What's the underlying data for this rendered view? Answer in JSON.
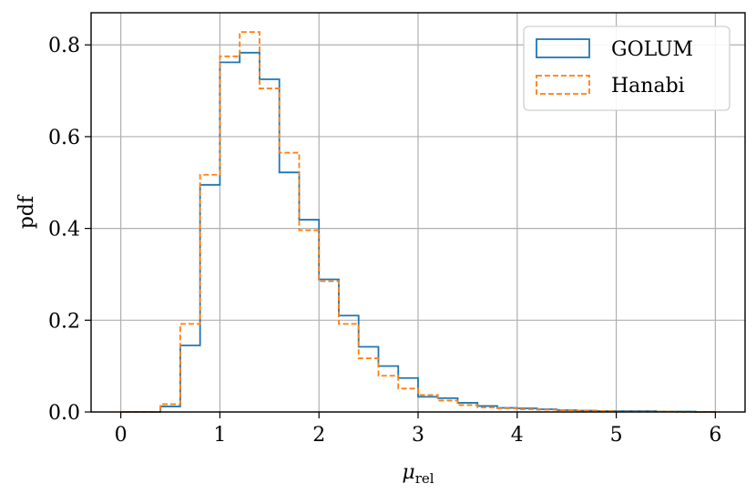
{
  "chart_data": {
    "type": "histogram",
    "title": "",
    "xlabel": "μ_rel",
    "xlabel_parts": {
      "base": "μ",
      "subscript": "rel"
    },
    "ylabel": "pdf",
    "xlim": [
      -0.3,
      6.3
    ],
    "ylim": [
      0,
      0.87
    ],
    "xticks": [
      0,
      1,
      2,
      3,
      4,
      5,
      6
    ],
    "xtick_labels": [
      "0",
      "1",
      "2",
      "3",
      "4",
      "5",
      "6"
    ],
    "yticks": [
      0,
      0.2,
      0.4,
      0.6,
      0.8
    ],
    "ytick_labels": [
      "0.0",
      "0.2",
      "0.4",
      "0.6",
      "0.8"
    ],
    "grid": true,
    "legend_position": "top-right",
    "bin_edges": [
      0.0,
      0.2,
      0.4,
      0.6,
      0.8,
      1.0,
      1.2,
      1.4,
      1.6,
      1.8,
      2.0,
      2.2,
      2.4,
      2.6,
      2.8,
      3.0,
      3.2,
      3.4,
      3.6,
      3.8,
      4.0,
      4.2,
      4.4,
      4.6,
      4.8,
      5.0,
      5.2,
      5.4,
      5.6,
      5.8,
      6.0
    ],
    "series": [
      {
        "name": "GOLUM",
        "color": "#1f77b4",
        "linestyle": "solid",
        "values": [
          0.0,
          0.0,
          0.012,
          0.145,
          0.495,
          0.762,
          0.783,
          0.725,
          0.522,
          0.419,
          0.289,
          0.21,
          0.142,
          0.1,
          0.074,
          0.033,
          0.03,
          0.02,
          0.013,
          0.009,
          0.008,
          0.006,
          0.004,
          0.003,
          0.002,
          0.002,
          0.002,
          0.001,
          0.001,
          0.0
        ]
      },
      {
        "name": "Hanabi",
        "color": "#ff7f0e",
        "linestyle": "dashed",
        "values": [
          0.0,
          0.0,
          0.017,
          0.192,
          0.517,
          0.775,
          0.828,
          0.705,
          0.565,
          0.396,
          0.285,
          0.192,
          0.117,
          0.079,
          0.051,
          0.037,
          0.025,
          0.015,
          0.01,
          0.008,
          0.006,
          0.005,
          0.004,
          0.002,
          0.002,
          0.001,
          0.001,
          0.001,
          0.0,
          0.0
        ]
      }
    ]
  }
}
